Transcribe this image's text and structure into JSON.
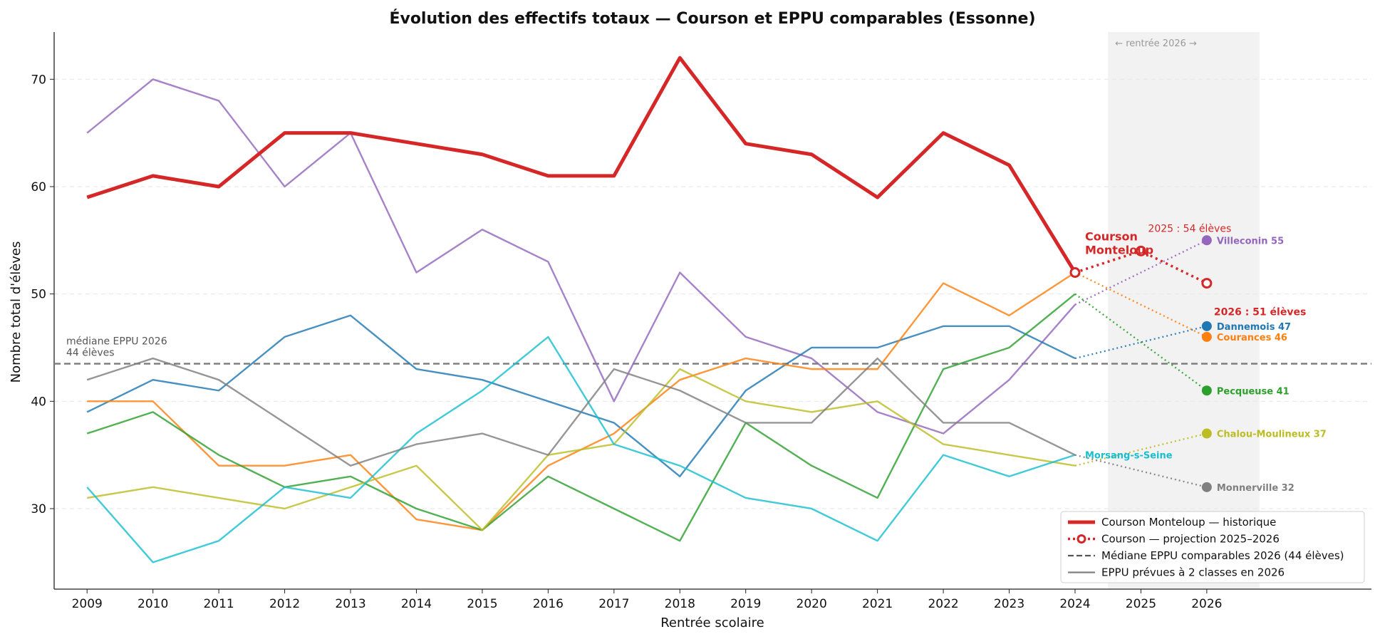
{
  "chart_data": {
    "type": "line",
    "title": "Évolution des effectifs totaux — Courson et EPPU comparables (Essonne)",
    "xlabel": "Rentrée scolaire",
    "ylabel": "Nombre total d'élèves",
    "xlim": [
      2008.5,
      2028.5
    ],
    "ylim": [
      22.5,
      74.4
    ],
    "x_ticks": [
      2009,
      2010,
      2011,
      2012,
      2013,
      2014,
      2015,
      2016,
      2017,
      2018,
      2019,
      2020,
      2021,
      2022,
      2023,
      2024,
      2025,
      2026
    ],
    "y_ticks": [
      30,
      40,
      50,
      60,
      70
    ],
    "grid": "horizontal dashed",
    "shaded_band": {
      "x_from": 2024.5,
      "x_to": 2026.8,
      "label": "← rentrée 2026 →"
    },
    "median": {
      "value": 43.5,
      "label_line1": "médiane EPPU 2026",
      "label_line2": "44 élèves"
    },
    "years": [
      2009,
      2010,
      2011,
      2012,
      2013,
      2014,
      2015,
      2016,
      2017,
      2018,
      2019,
      2020,
      2021,
      2022,
      2023,
      2024
    ],
    "courson": {
      "name": "Courson Monteloup",
      "color": "#d62728",
      "label_line1": "Courson",
      "label_line2": "Monteloup",
      "history": [
        59,
        61,
        60,
        65,
        65,
        64,
        63,
        61,
        61,
        72,
        64,
        63,
        59,
        65,
        62,
        52
      ],
      "projection_x": [
        2024,
        2025,
        2026
      ],
      "projection_y": [
        52,
        54,
        51
      ],
      "annotation_2025": "2025 : 54 élèves",
      "annotation_2026": "2026 : 51 élèves"
    },
    "series": [
      {
        "name": "Villeconin",
        "end_label": "55",
        "color": "#9467bd",
        "values": [
          65,
          70,
          68,
          60,
          65,
          52,
          56,
          53,
          40,
          52,
          46,
          44,
          39,
          37,
          42,
          49
        ],
        "projection_2026": 55
      },
      {
        "name": "Dannemois",
        "end_label": "47",
        "color": "#1f77b4",
        "values": [
          39,
          42,
          41,
          46,
          48,
          43,
          42,
          40,
          38,
          33,
          41,
          45,
          45,
          47,
          47,
          44
        ],
        "projection_2026": 47
      },
      {
        "name": "Courances",
        "end_label": "46",
        "color": "#ff7f0e",
        "values": [
          40,
          40,
          34,
          34,
          35,
          29,
          28,
          34,
          37,
          42,
          44,
          43,
          43,
          51,
          48,
          52
        ],
        "projection_2026": 46
      },
      {
        "name": "Pecqueuse",
        "end_label": "41",
        "color": "#2ca02c",
        "values": [
          37,
          39,
          35,
          32,
          33,
          30,
          28,
          33,
          30,
          27,
          38,
          34,
          31,
          43,
          45,
          50
        ],
        "projection_2026": 41
      },
      {
        "name": "Chalou-Moulineux",
        "end_label": "37",
        "color": "#bcbd22",
        "values": [
          31,
          32,
          31,
          30,
          32,
          34,
          28,
          35,
          36,
          43,
          40,
          39,
          40,
          36,
          35,
          34
        ],
        "projection_2026": 37
      },
      {
        "name": "Morsang-s-Seine",
        "end_label": "",
        "color": "#17becf",
        "values": [
          32,
          25,
          27,
          32,
          31,
          37,
          41,
          46,
          36,
          34,
          31,
          30,
          27,
          35,
          33,
          35
        ],
        "projection_2026": null
      },
      {
        "name": "Monnerville",
        "end_label": "32",
        "color": "#7f7f7f",
        "values": [
          42,
          44,
          42,
          38,
          34,
          36,
          37,
          35,
          43,
          41,
          38,
          38,
          44,
          38,
          38,
          35
        ],
        "projection_2026": 32
      }
    ],
    "legend": {
      "position": "bottom-right",
      "entries": [
        "Courson Monteloup — historique",
        "Courson — projection 2025–2026",
        "Médiane EPPU comparables 2026 (44 élèves)",
        "EPPU prévues à 2 classes en 2026"
      ]
    }
  }
}
